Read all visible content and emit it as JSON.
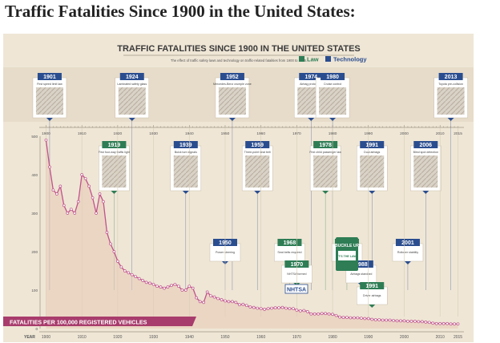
{
  "page_title": "Traffic Fatalities Since 1900 in the United States:",
  "poster": {
    "title": "TRAFFIC FATALITIES SINCE 1900 IN THE UNITED STATES",
    "subtitle": "The effect of traffic safety laws and technology on traffic-related fatalities from 1900 to 2015.",
    "legend": [
      {
        "label": "Law",
        "color": "#2e7d55",
        "icon": "square-marker-icon"
      },
      {
        "label": "Technology",
        "color": "#2a4d8f",
        "icon": "square-marker-icon"
      }
    ],
    "banner_label": "FATALITIES PER 100,000 REGISTERED VEHICLES",
    "axis_year_label": "YEAR"
  },
  "colors": {
    "background": "#efe6d6",
    "line": "#c0538b",
    "banner": "#a83c6c",
    "law": "#2e7d55",
    "technology": "#2a4d8f"
  },
  "callouts": [
    {
      "year": "1901",
      "kind": "technology",
      "row": "top",
      "text": "First speed limit law"
    },
    {
      "year": "1924",
      "kind": "technology",
      "row": "top",
      "text": "Laminated safety glass"
    },
    {
      "year": "1952",
      "kind": "technology",
      "row": "top",
      "text": "Mercedes-Benz crumple zone"
    },
    {
      "year": "1974",
      "kind": "technology",
      "row": "top",
      "text": "Airbag prototypes"
    },
    {
      "year": "1980",
      "kind": "technology",
      "row": "top",
      "text": "Cruise control"
    },
    {
      "year": "2013",
      "kind": "technology",
      "row": "top",
      "text": "Toyota pre-collision"
    },
    {
      "year": "1919",
      "kind": "law",
      "row": "mid",
      "text": "First four-way traffic light"
    },
    {
      "year": "1939",
      "kind": "technology",
      "row": "mid",
      "text": "Buick turn signals"
    },
    {
      "year": "1959",
      "kind": "technology",
      "row": "mid",
      "text": "Three-point seat belt"
    },
    {
      "year": "1978",
      "kind": "law",
      "row": "mid",
      "text": "First child passenger law"
    },
    {
      "year": "1991",
      "kind": "technology",
      "row": "mid",
      "text": "Dual airbags"
    },
    {
      "year": "2006",
      "kind": "technology",
      "row": "mid",
      "text": "Blind spot detection"
    },
    {
      "year": "1950",
      "kind": "technology",
      "row": "low",
      "text": "Power steering"
    },
    {
      "year": "1968",
      "kind": "law",
      "row": "low",
      "text": "Seat belts required"
    },
    {
      "year": "1970",
      "kind": "law",
      "row": "low",
      "text": "NHTSA formed"
    },
    {
      "year": "1984",
      "kind": "law",
      "row": "low",
      "text": "Buckle up law"
    },
    {
      "year": "1988",
      "kind": "technology",
      "row": "low",
      "text": "Airbags standard"
    },
    {
      "year": "1991",
      "kind": "law",
      "row": "low",
      "text": "Driver airbags"
    },
    {
      "year": "2001",
      "kind": "technology",
      "row": "low",
      "text": "Rollover stability"
    }
  ],
  "badges": {
    "buckle_up": "BUCKLE UP",
    "its_the_law": "IT'S THE LAW",
    "nhtsa": "NHTSA"
  },
  "chart_data": {
    "type": "line",
    "title": "TRAFFIC FATALITIES SINCE 1900 IN THE UNITED STATES",
    "xlabel": "YEAR",
    "ylabel": "FATALITIES PER 100,000 REGISTERED VEHICLES",
    "xlim": [
      1899,
      2016
    ],
    "ylim": [
      0,
      500
    ],
    "x_ticks": [
      1900,
      1910,
      1920,
      1930,
      1940,
      1950,
      1960,
      1970,
      1980,
      1990,
      2000,
      2010,
      2015
    ],
    "y_ticks": [
      0,
      100,
      200,
      300,
      400,
      500
    ],
    "grid": false,
    "series": [
      {
        "x": [
          1900,
          1901,
          1902,
          1903,
          1904,
          1905,
          1906,
          1907,
          1908,
          1909,
          1910,
          1911,
          1912,
          1913,
          1914,
          1915,
          1916,
          1917,
          1918,
          1919,
          1920,
          1921,
          1922,
          1923,
          1924,
          1925,
          1926,
          1927,
          1928,
          1929,
          1930,
          1931,
          1932,
          1933,
          1934,
          1935,
          1936,
          1937,
          1938,
          1939,
          1940,
          1941,
          1942,
          1943,
          1944,
          1945,
          1946,
          1947,
          1948,
          1949,
          1950,
          1951,
          1952,
          1953,
          1954,
          1955,
          1956,
          1957,
          1958,
          1959,
          1960,
          1961,
          1962,
          1963,
          1964,
          1965,
          1966,
          1967,
          1968,
          1969,
          1970,
          1971,
          1972,
          1973,
          1974,
          1975,
          1976,
          1977,
          1978,
          1979,
          1980,
          1981,
          1982,
          1983,
          1984,
          1985,
          1986,
          1987,
          1988,
          1989,
          1990,
          1991,
          1992,
          1993,
          1994,
          1995,
          1996,
          1997,
          1998,
          1999,
          2000,
          2001,
          2002,
          2003,
          2004,
          2005,
          2006,
          2007,
          2008,
          2009,
          2010,
          2011,
          2012,
          2013,
          2014,
          2015
        ],
        "values": [
          490,
          420,
          360,
          350,
          370,
          320,
          300,
          310,
          300,
          330,
          400,
          390,
          370,
          340,
          300,
          350,
          330,
          250,
          220,
          200,
          175,
          160,
          150,
          145,
          140,
          135,
          130,
          125,
          120,
          118,
          115,
          110,
          108,
          105,
          108,
          112,
          115,
          110,
          100,
          100,
          110,
          105,
          80,
          70,
          68,
          95,
          85,
          82,
          78,
          75,
          72,
          70,
          70,
          68,
          62,
          63,
          60,
          56,
          55,
          53,
          52,
          50,
          52,
          53,
          54,
          54,
          55,
          53,
          52,
          52,
          48,
          46,
          47,
          44,
          38,
          38,
          38,
          39,
          39,
          38,
          37,
          34,
          30,
          29,
          29,
          28,
          28,
          28,
          27,
          26,
          26,
          24,
          23,
          23,
          22,
          22,
          22,
          21,
          20,
          20,
          20,
          19,
          19,
          19,
          18,
          18,
          17,
          16,
          14,
          13,
          13,
          13,
          13,
          12,
          12,
          12
        ]
      }
    ]
  }
}
